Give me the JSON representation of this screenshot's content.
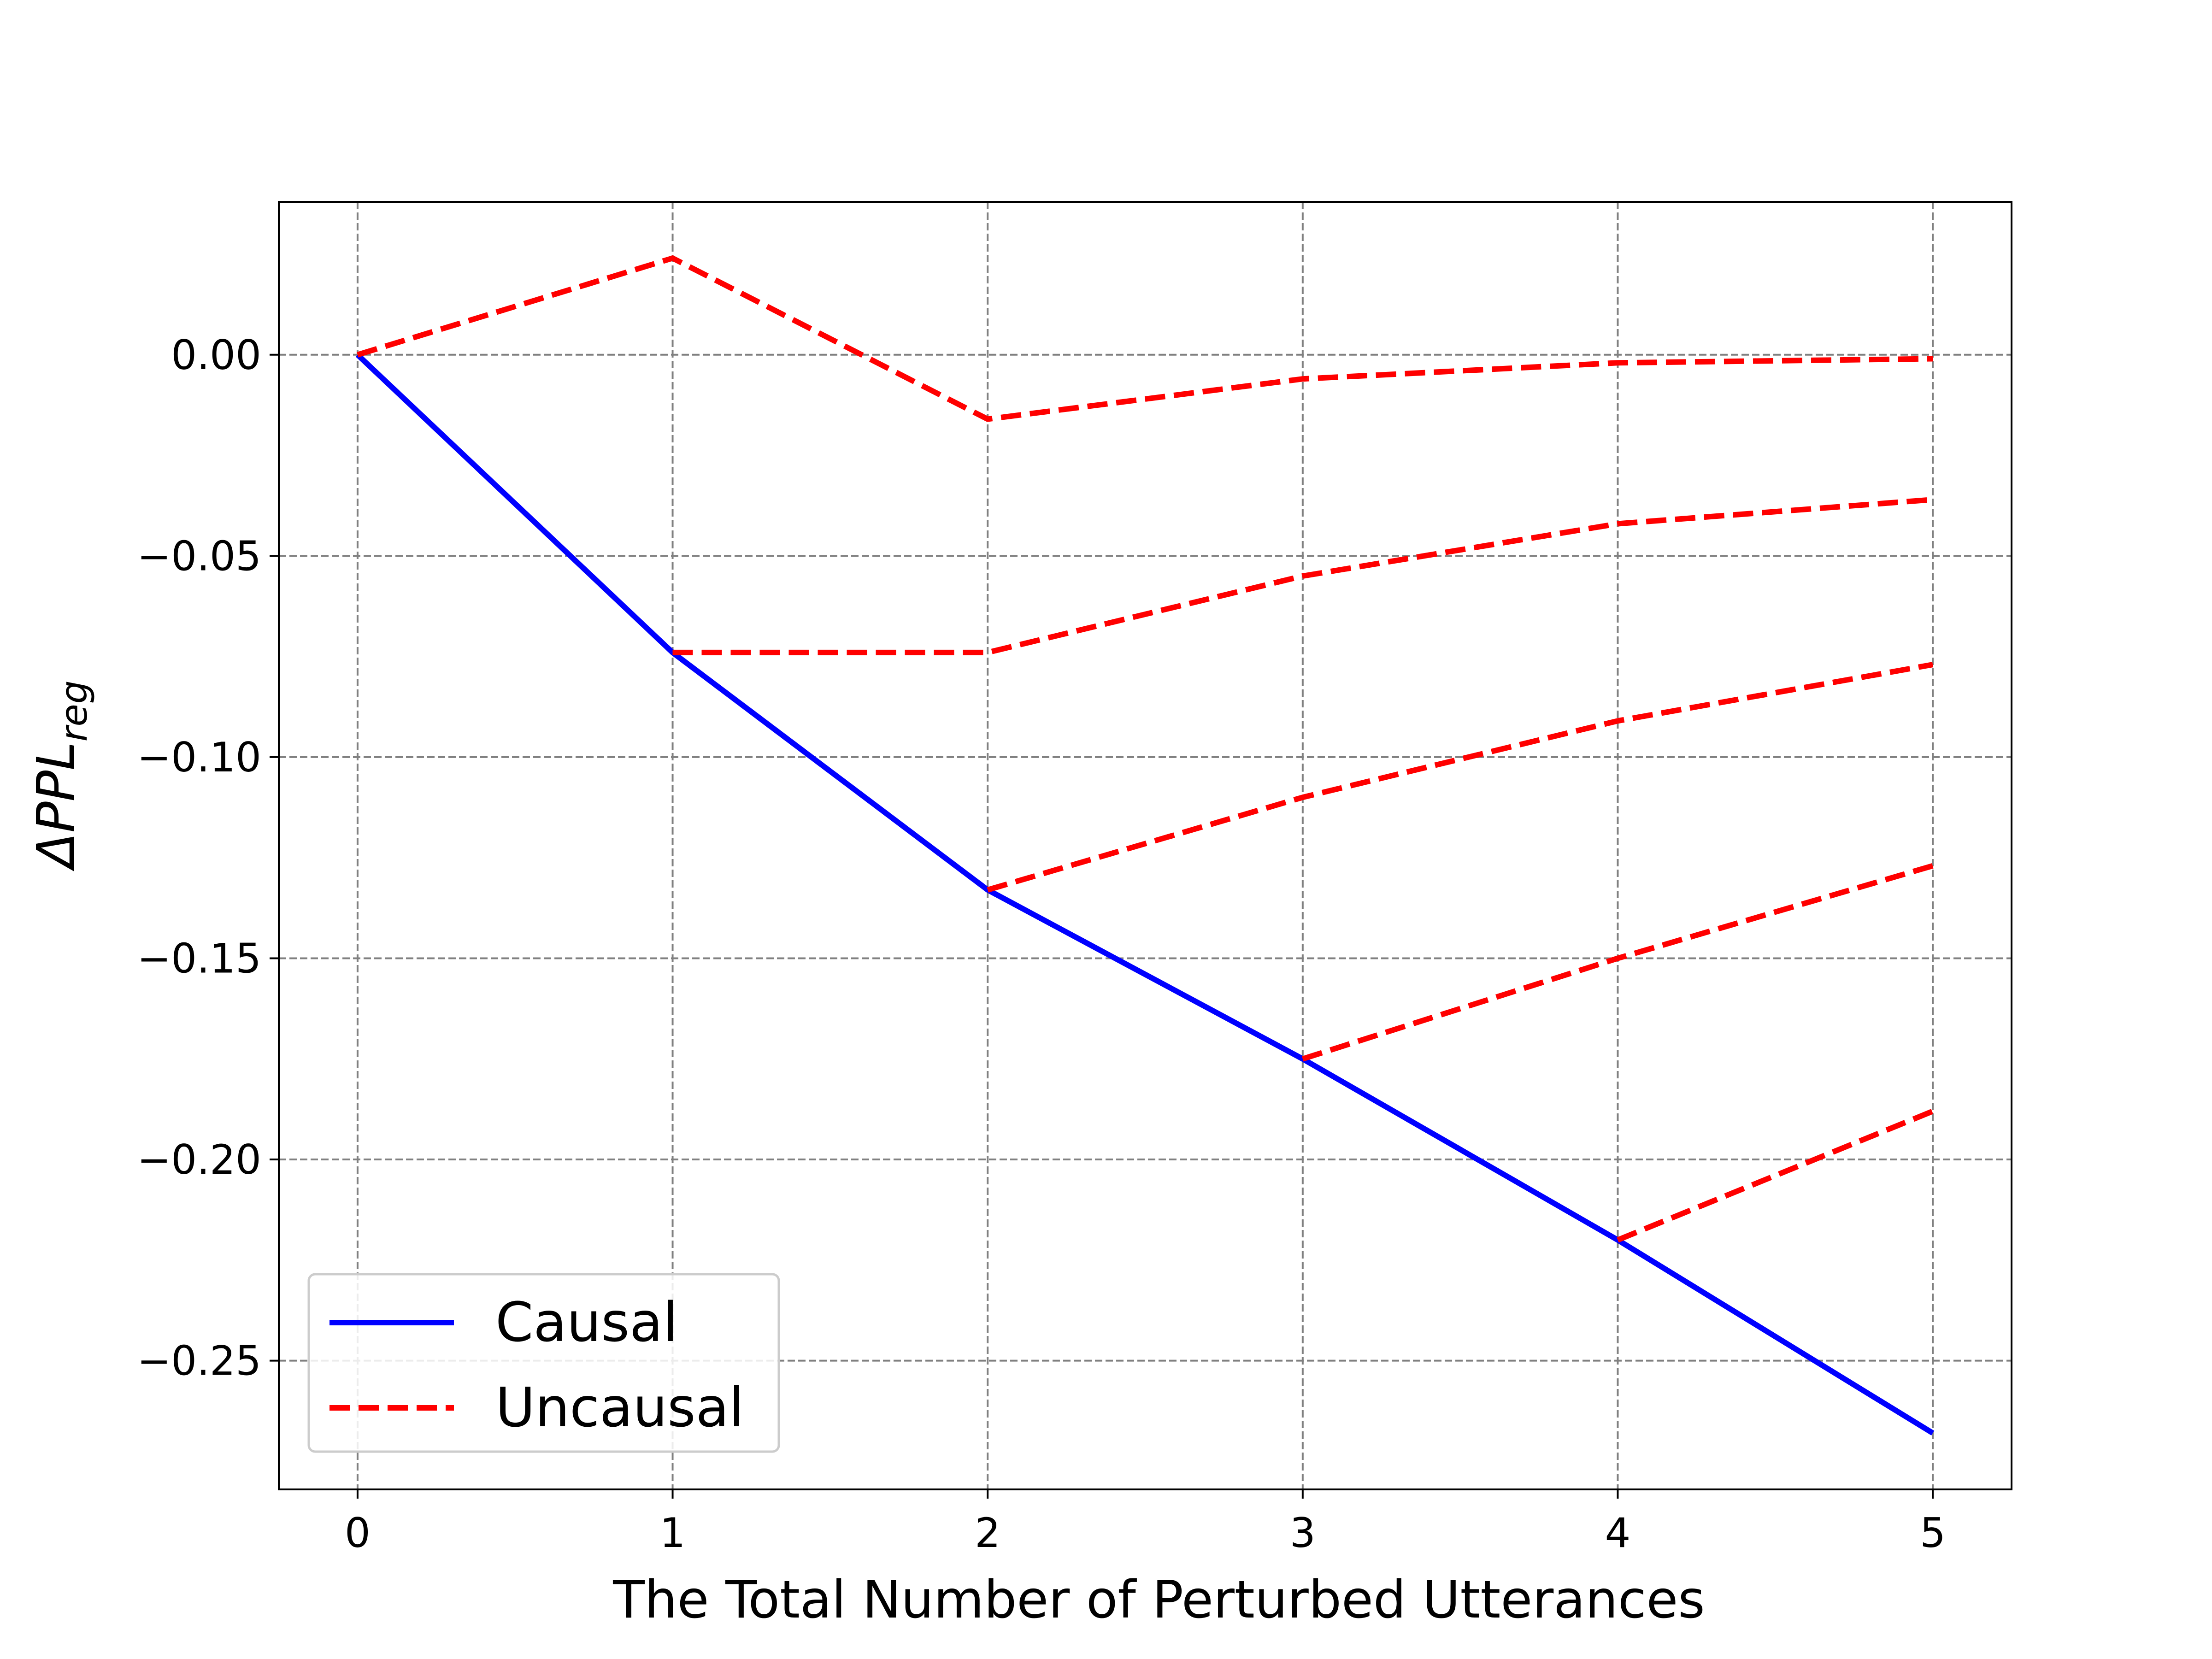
{
  "chart_data": {
    "type": "line",
    "xlabel": "The Total Number of Perturbed Utterances",
    "ylabel": {
      "main": "ΔPPL",
      "subscript": "reg"
    },
    "xlim": [
      -0.25,
      5.25
    ],
    "ylim": [
      -0.282,
      0.038
    ],
    "xticks": [
      0,
      1,
      2,
      3,
      4,
      5
    ],
    "xtick_labels": [
      "0",
      "1",
      "2",
      "3",
      "4",
      "5"
    ],
    "yticks": [
      0.0,
      -0.05,
      -0.1,
      -0.15,
      -0.2,
      -0.25
    ],
    "ytick_labels": [
      "0.00",
      "−0.05",
      "−0.10",
      "−0.15",
      "−0.20",
      "−0.25"
    ],
    "grid": true,
    "legend_position": "lower-left",
    "legend": [
      {
        "label": "Causal",
        "style": "solid",
        "color": "#0000ff"
      },
      {
        "label": "Uncausal",
        "style": "dashed",
        "color": "#ff0000"
      }
    ],
    "series": [
      {
        "legend": "Causal",
        "color": "#0000ff",
        "dash": false,
        "points": [
          [
            0,
            0.0
          ],
          [
            1,
            -0.074
          ],
          [
            2,
            -0.133
          ],
          [
            3,
            -0.175
          ],
          [
            4,
            -0.22
          ],
          [
            5,
            -0.268
          ]
        ]
      },
      {
        "legend": "Uncausal",
        "color": "#ff0000",
        "dash": true,
        "points": [
          [
            0,
            0.0
          ],
          [
            1,
            0.024
          ],
          [
            2,
            -0.016
          ],
          [
            3,
            -0.006
          ],
          [
            4,
            -0.002
          ],
          [
            5,
            -0.001
          ]
        ]
      },
      {
        "legend": "Uncausal",
        "color": "#ff0000",
        "dash": true,
        "points": [
          [
            1,
            -0.074
          ],
          [
            2,
            -0.074
          ],
          [
            3,
            -0.055
          ],
          [
            4,
            -0.042
          ],
          [
            5,
            -0.036
          ]
        ]
      },
      {
        "legend": "Uncausal",
        "color": "#ff0000",
        "dash": true,
        "points": [
          [
            2,
            -0.133
          ],
          [
            3,
            -0.11
          ],
          [
            4,
            -0.091
          ],
          [
            5,
            -0.077
          ]
        ]
      },
      {
        "legend": "Uncausal",
        "color": "#ff0000",
        "dash": true,
        "points": [
          [
            3,
            -0.175
          ],
          [
            4,
            -0.15
          ],
          [
            5,
            -0.127
          ]
        ]
      },
      {
        "legend": "Uncausal",
        "color": "#ff0000",
        "dash": true,
        "points": [
          [
            4,
            -0.22
          ],
          [
            5,
            -0.188
          ]
        ]
      }
    ]
  }
}
